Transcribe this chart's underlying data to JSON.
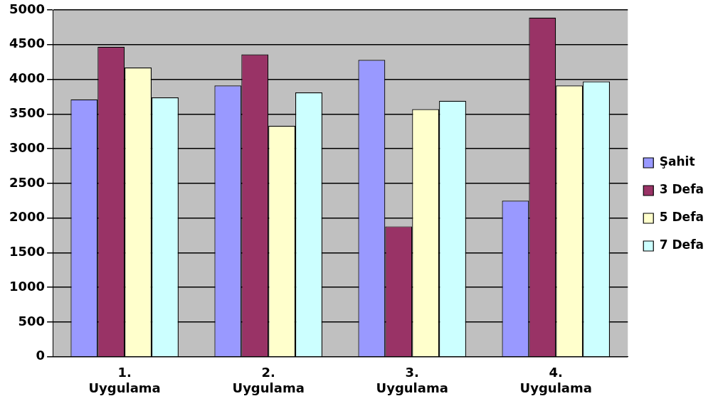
{
  "chart_data": {
    "type": "bar",
    "categories": [
      "1. Uygulama",
      "2. Uygulama",
      "3. Uygulama",
      "4. Uygulama"
    ],
    "series": [
      {
        "name": "Şahit",
        "color": "#9999ff",
        "values": [
          3710,
          3910,
          4280,
          2250
        ]
      },
      {
        "name": "3 Defa",
        "color": "#993366",
        "values": [
          4470,
          4360,
          1880,
          4890
        ]
      },
      {
        "name": "5 Defa",
        "color": "#ffffcc",
        "values": [
          4170,
          3330,
          3570,
          3910
        ]
      },
      {
        "name": "7 Defa",
        "color": "#ccffff",
        "values": [
          3740,
          3810,
          3690,
          3970
        ]
      }
    ],
    "ylim": [
      0,
      5000
    ],
    "yticks": [
      0,
      500,
      1000,
      1500,
      2000,
      2500,
      3000,
      3500,
      4000,
      4500,
      5000
    ],
    "grid": "y",
    "legend": "right"
  }
}
